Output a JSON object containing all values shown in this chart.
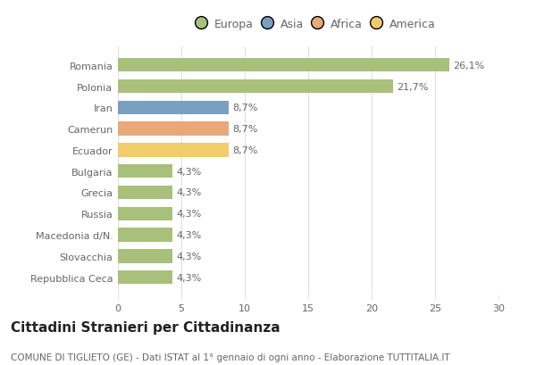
{
  "categories": [
    "Repubblica Ceca",
    "Slovacchia",
    "Macedonia d/N.",
    "Russia",
    "Grecia",
    "Bulgaria",
    "Ecuador",
    "Camerun",
    "Iran",
    "Polonia",
    "Romania"
  ],
  "values": [
    4.3,
    4.3,
    4.3,
    4.3,
    4.3,
    4.3,
    8.7,
    8.7,
    8.7,
    21.7,
    26.1
  ],
  "bar_colors": [
    "#a8c07a",
    "#a8c07a",
    "#a8c07a",
    "#a8c07a",
    "#a8c07a",
    "#a8c07a",
    "#f0cc6a",
    "#e8a878",
    "#7a9fc0",
    "#a8c07a",
    "#a8c07a"
  ],
  "labels": [
    "4,3%",
    "4,3%",
    "4,3%",
    "4,3%",
    "4,3%",
    "4,3%",
    "8,7%",
    "8,7%",
    "8,7%",
    "21,7%",
    "26,1%"
  ],
  "legend_labels": [
    "Europa",
    "Asia",
    "Africa",
    "America"
  ],
  "legend_colors": [
    "#a8c07a",
    "#7a9fc0",
    "#e8a878",
    "#f0cc6a"
  ],
  "title": "Cittadini Stranieri per Cittadinanza",
  "subtitle": "COMUNE DI TIGLIETO (GE) - Dati ISTAT al 1° gennaio di ogni anno - Elaborazione TUTTITALIA.IT",
  "xlim": [
    0,
    30
  ],
  "xticks": [
    0,
    5,
    10,
    15,
    20,
    25,
    30
  ],
  "background_color": "#ffffff",
  "grid_color": "#e0e0e0",
  "bar_height": 0.65,
  "title_fontsize": 11,
  "subtitle_fontsize": 7.5,
  "label_fontsize": 8,
  "tick_fontsize": 8,
  "legend_fontsize": 9
}
